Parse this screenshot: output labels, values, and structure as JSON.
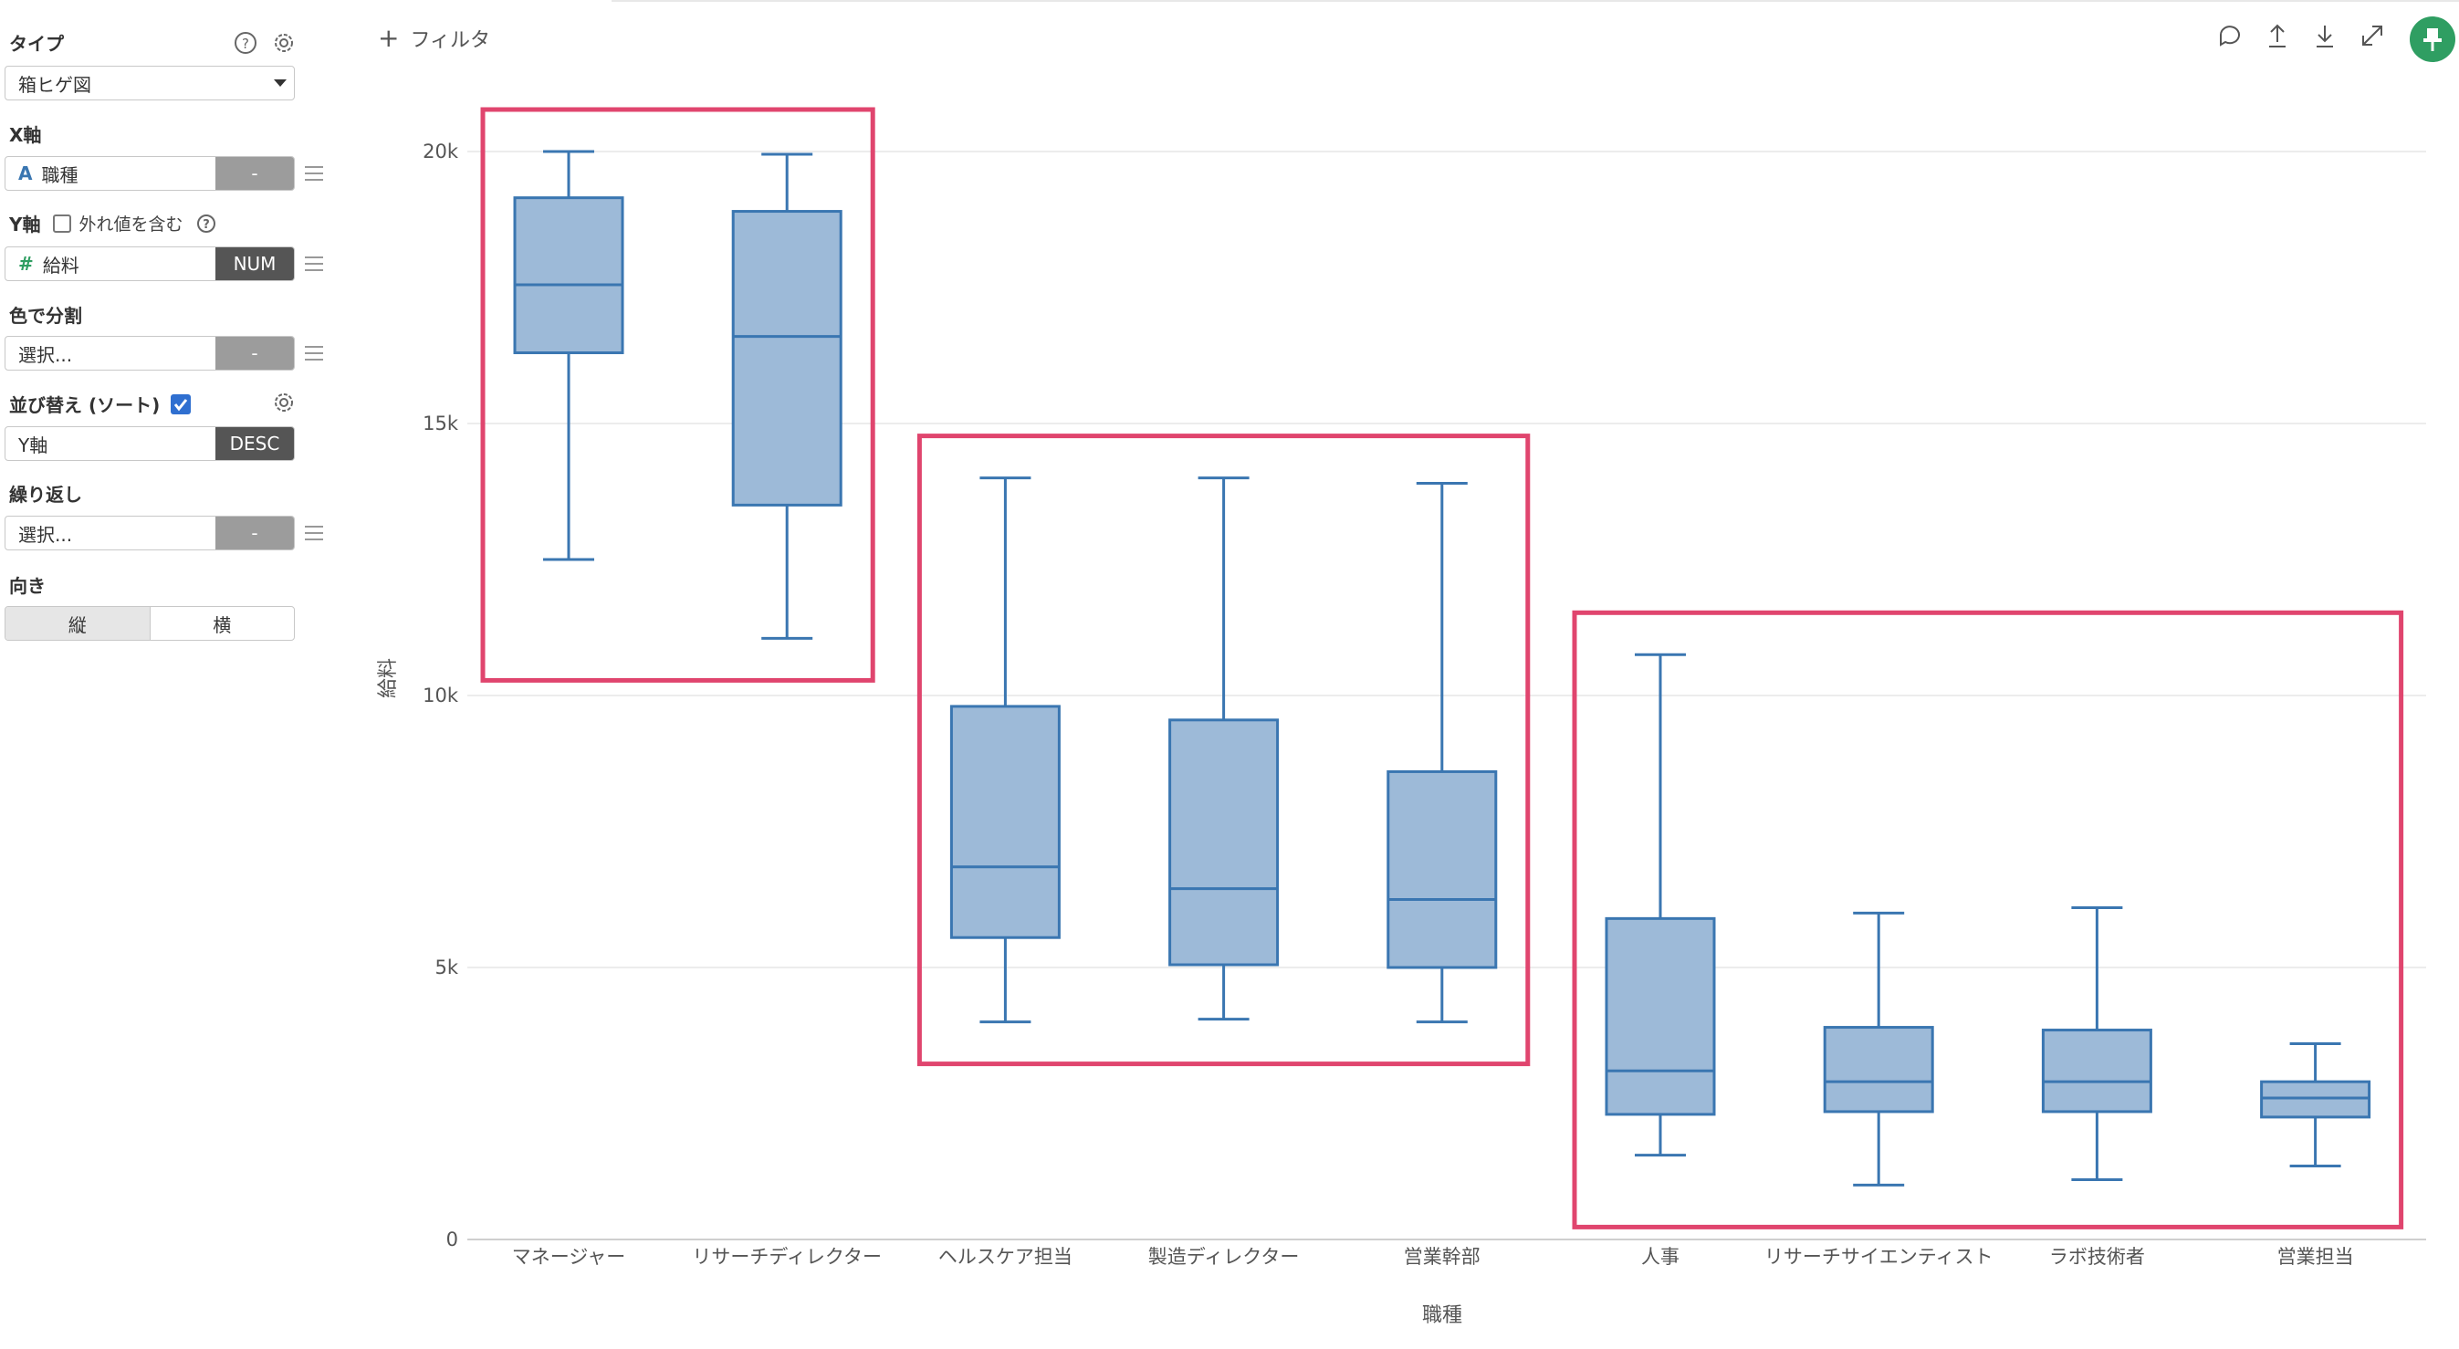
{
  "sidebar": {
    "type_label": "タイプ",
    "type_value": "箱ヒゲ図",
    "x_label": "X軸",
    "x_field": "職種",
    "x_field_icon": "A",
    "x_tag": "-",
    "y_label": "Y軸",
    "y_outlier_label": "外れ値を含む",
    "y_field": "給料",
    "y_field_icon": "#",
    "y_tag": "NUM",
    "color_label": "色で分割",
    "color_value": "選択...",
    "color_tag": "-",
    "sort_label": "並び替え (ソート)",
    "sort_value": "Y軸",
    "sort_tag": "DESC",
    "repeat_label": "繰り返し",
    "repeat_value": "選択...",
    "repeat_tag": "-",
    "orient_label": "向き",
    "orient_vertical": "縦",
    "orient_horizontal": "横"
  },
  "header": {
    "filter_label": "フィルタ"
  },
  "colors": {
    "accent": "#2f9e62",
    "box_fill": "#9dbad8",
    "box_stroke": "#3a76b1",
    "highlight": "#e0456e"
  },
  "chart_data": {
    "type": "boxplot",
    "xlabel": "職種",
    "ylabel": "給料",
    "ylim": [
      0,
      20000
    ],
    "yticks": [
      0,
      5000,
      10000,
      15000,
      20000
    ],
    "ytick_labels": [
      "0",
      "5k",
      "10k",
      "15k",
      "20k"
    ],
    "categories": [
      "マネージャー",
      "リサーチディレクター",
      "ヘルスケア担当",
      "製造ディレクター",
      "営業幹部",
      "人事",
      "リサーチサイエンティスト",
      "ラボ技術者",
      "営業担当"
    ],
    "boxes": [
      {
        "min": 12500,
        "q1": 16300,
        "median": 17550,
        "q3": 19150,
        "max": 20000
      },
      {
        "min": 11050,
        "q1": 13500,
        "median": 16600,
        "q3": 18900,
        "max": 19950
      },
      {
        "min": 4000,
        "q1": 5550,
        "median": 6850,
        "q3": 9800,
        "max": 14000
      },
      {
        "min": 4050,
        "q1": 5050,
        "median": 6450,
        "q3": 9550,
        "max": 14000
      },
      {
        "min": 4000,
        "q1": 5000,
        "median": 6250,
        "q3": 8600,
        "max": 13900
      },
      {
        "min": 1550,
        "q1": 2300,
        "median": 3100,
        "q3": 5900,
        "max": 10750
      },
      {
        "min": 1000,
        "q1": 2350,
        "median": 2900,
        "q3": 3900,
        "max": 6000
      },
      {
        "min": 1100,
        "q1": 2350,
        "median": 2900,
        "q3": 3850,
        "max": 6100
      },
      {
        "min": 1350,
        "q1": 2250,
        "median": 2600,
        "q3": 2900,
        "max": 3600
      }
    ],
    "highlight_groups": [
      [
        0,
        1
      ],
      [
        2,
        4
      ],
      [
        5,
        8
      ]
    ],
    "grid": true
  }
}
